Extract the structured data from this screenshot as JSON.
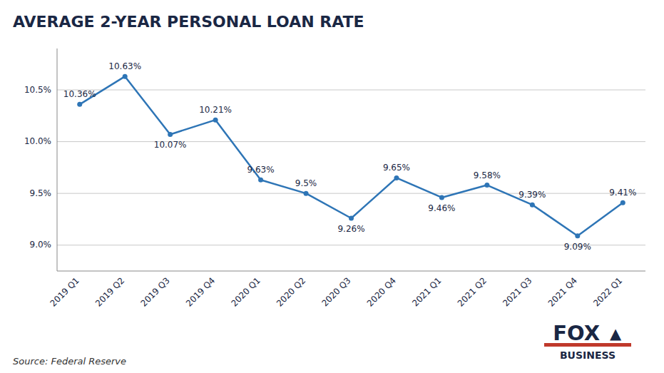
{
  "chart_data": {
    "type": "line",
    "title": "AVERAGE 2-YEAR PERSONAL LOAN RATE",
    "annotations": [
      "Source: Federal Reserve",
      "FOX",
      "▲",
      "BUSINESS"
    ],
    "categories": [
      "2019 Q1",
      "2019 Q2",
      "2019 Q3",
      "2019 Q4",
      "2020 Q1",
      "2020 Q2",
      "2020 Q3",
      "2020 Q4",
      "2021 Q1",
      "2021 Q2",
      "2021 Q3",
      "2021 Q4",
      "2022 Q1"
    ],
    "values": [
      10.36,
      10.63,
      10.07,
      10.21,
      9.63,
      9.5,
      9.26,
      9.65,
      9.46,
      9.58,
      9.39,
      9.09,
      9.41
    ],
    "value_labels": [
      "10.36%",
      "10.63%",
      "10.07%",
      "10.21%",
      "9.63%",
      "9.5%",
      "9.26%",
      "9.65%",
      "9.46%",
      "9.58%",
      "9.39%",
      "9.09%",
      "9.41%"
    ],
    "data_labels": true,
    "color": "#2e75b6",
    "marker": "circle",
    "ylim": [
      8.75,
      10.9
    ],
    "yticks": [
      {
        "value": 9.0,
        "label": "9.0%"
      },
      {
        "value": 9.5,
        "label": "9.5%"
      },
      {
        "value": 10.0,
        "label": "10.0%"
      },
      {
        "value": 10.5,
        "label": "10.5%"
      }
    ],
    "grid": true
  }
}
